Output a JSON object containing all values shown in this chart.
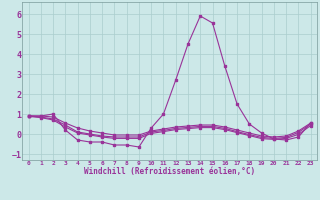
{
  "title": "",
  "xlabel": "Windchill (Refroidissement éolien,°C)",
  "background_color": "#cce8e8",
  "grid_color": "#aacece",
  "line_color": "#993399",
  "xlim": [
    -0.5,
    23.5
  ],
  "ylim": [
    -1.3,
    6.6
  ],
  "yticks": [
    -1,
    0,
    1,
    2,
    3,
    4,
    5,
    6
  ],
  "xticks": [
    0,
    1,
    2,
    3,
    4,
    5,
    6,
    7,
    8,
    9,
    10,
    11,
    12,
    13,
    14,
    15,
    16,
    17,
    18,
    19,
    20,
    21,
    22,
    23
  ],
  "lines": [
    {
      "x": [
        0,
        1,
        2,
        3,
        4,
        5,
        6,
        7,
        8,
        9,
        10,
        11,
        12,
        13,
        14,
        15,
        16,
        17,
        18,
        19,
        20,
        21,
        22,
        23
      ],
      "y": [
        0.9,
        0.9,
        1.0,
        0.2,
        -0.3,
        -0.4,
        -0.4,
        -0.55,
        -0.55,
        -0.65,
        0.3,
        1.0,
        2.7,
        4.5,
        5.9,
        5.55,
        3.4,
        1.5,
        0.5,
        0.05,
        -0.25,
        -0.3,
        -0.15,
        0.55
      ]
    },
    {
      "x": [
        0,
        1,
        2,
        3,
        4,
        5,
        6,
        7,
        8,
        9,
        10,
        11,
        12,
        13,
        14,
        15,
        16,
        17,
        18,
        19,
        20,
        21,
        22,
        23
      ],
      "y": [
        0.9,
        0.9,
        0.85,
        0.55,
        0.3,
        0.15,
        0.05,
        -0.05,
        -0.05,
        -0.05,
        0.15,
        0.25,
        0.35,
        0.4,
        0.45,
        0.45,
        0.35,
        0.2,
        0.05,
        -0.1,
        -0.15,
        -0.1,
        0.15,
        0.55
      ]
    },
    {
      "x": [
        0,
        1,
        2,
        3,
        4,
        5,
        6,
        7,
        8,
        9,
        10,
        11,
        12,
        13,
        14,
        15,
        16,
        17,
        18,
        19,
        20,
        21,
        22,
        23
      ],
      "y": [
        0.9,
        0.85,
        0.75,
        0.45,
        0.1,
        0.0,
        -0.1,
        -0.15,
        -0.15,
        -0.15,
        0.1,
        0.18,
        0.28,
        0.33,
        0.38,
        0.38,
        0.28,
        0.12,
        -0.03,
        -0.17,
        -0.22,
        -0.17,
        0.08,
        0.5
      ]
    },
    {
      "x": [
        0,
        1,
        2,
        3,
        4,
        5,
        6,
        7,
        8,
        9,
        10,
        11,
        12,
        13,
        14,
        15,
        16,
        17,
        18,
        19,
        20,
        21,
        22,
        23
      ],
      "y": [
        0.88,
        0.82,
        0.7,
        0.35,
        0.05,
        -0.05,
        -0.15,
        -0.22,
        -0.22,
        -0.22,
        0.03,
        0.12,
        0.22,
        0.27,
        0.32,
        0.32,
        0.22,
        0.07,
        -0.08,
        -0.23,
        -0.27,
        -0.22,
        -0.02,
        0.42
      ]
    }
  ]
}
